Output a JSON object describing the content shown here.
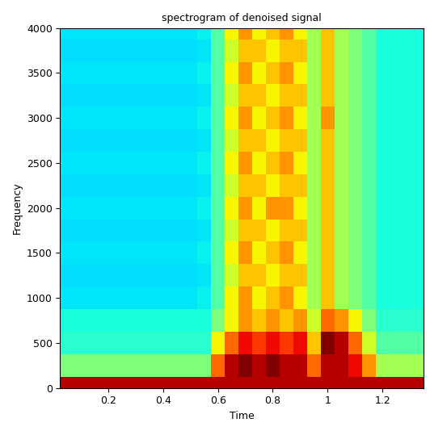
{
  "chart_data": {
    "type": "heatmap",
    "title": "spectrogram of denoised signal",
    "x_label": "Time",
    "y_label": "Frequency",
    "xlim": [
      0.025,
      1.35
    ],
    "xticks": [
      0.2,
      0.4,
      0.6,
      0.8,
      1,
      1.2
    ],
    "ylim": [
      0,
      4000
    ],
    "yticks": [
      0,
      500,
      1000,
      1500,
      2000,
      2500,
      3000,
      3500,
      4000
    ],
    "grid": false,
    "x": [
      0.05,
      0.1,
      0.15,
      0.2,
      0.25,
      0.3,
      0.35,
      0.4,
      0.45,
      0.5,
      0.55,
      0.6,
      0.65,
      0.7,
      0.75,
      0.8,
      0.85,
      0.9,
      0.95,
      1.0,
      1.05,
      1.1,
      1.15,
      1.2,
      1.25,
      1.3,
      1.35
    ],
    "y": [
      0,
      250,
      500,
      750,
      1000,
      1250,
      1500,
      1750,
      2000,
      2250,
      2500,
      2750,
      3000,
      3250,
      3500,
      3750,
      4000
    ],
    "color_range": [
      0,
      10
    ],
    "cells": [
      [
        9.5,
        9.5,
        9.5,
        9.5,
        9.5,
        9.5,
        9.5,
        9.5,
        9.5,
        9.5,
        9.5,
        9.5,
        9.5,
        9.5,
        9.5,
        9.5,
        9.5,
        9.5,
        9.5,
        9.5,
        9.5,
        9.5,
        9.5,
        9.5,
        9.5,
        9.5,
        9.5
      ],
      [
        5,
        5,
        5,
        5,
        5,
        5,
        5,
        5,
        5,
        5,
        5,
        8,
        9.5,
        10,
        9.5,
        10,
        9.5,
        9.5,
        8,
        9.5,
        9.5,
        9,
        7.5,
        5.5,
        5.5,
        5.5,
        5.5
      ],
      [
        4,
        4,
        4,
        4,
        4,
        4,
        4,
        4,
        4,
        4,
        4,
        6.5,
        8,
        9,
        8.5,
        9,
        8.5,
        9,
        7,
        10,
        9.5,
        8,
        6,
        4.5,
        4.5,
        4.5,
        4.5
      ],
      [
        3.8,
        3.8,
        3.8,
        3.8,
        3.8,
        3.8,
        3.8,
        3.8,
        3.8,
        3.8,
        3.8,
        5,
        6.5,
        7.5,
        7,
        7.5,
        7,
        7.5,
        6,
        8,
        7.5,
        6.5,
        5,
        4,
        4,
        4,
        4
      ],
      [
        3.5,
        3.5,
        3.5,
        3.5,
        3.5,
        3.5,
        3.5,
        3.5,
        3.5,
        3.5,
        3.6,
        4.5,
        6.5,
        7.5,
        6.5,
        7,
        7.5,
        6.5,
        5.5,
        7,
        5.5,
        5,
        4.5,
        3.8,
        3.8,
        3.8,
        3.8
      ],
      [
        3.4,
        3.4,
        3.4,
        3.4,
        3.4,
        3.4,
        3.4,
        3.4,
        3.4,
        3.4,
        3.5,
        4.5,
        6,
        7,
        7,
        6.5,
        7,
        7,
        5.5,
        7,
        5.5,
        5,
        4.5,
        3.8,
        3.8,
        3.8,
        3.8
      ],
      [
        3.5,
        3.5,
        3.5,
        3.5,
        3.5,
        3.5,
        3.5,
        3.5,
        3.5,
        3.5,
        3.6,
        4.5,
        6.5,
        7.5,
        6.5,
        7,
        7.5,
        6.5,
        5.5,
        7,
        5.5,
        5,
        4.5,
        3.8,
        3.8,
        3.8,
        3.8
      ],
      [
        3.4,
        3.4,
        3.4,
        3.4,
        3.4,
        3.4,
        3.4,
        3.4,
        3.4,
        3.4,
        3.5,
        4.5,
        6,
        7,
        7,
        6.5,
        7,
        7,
        5.5,
        7,
        5.5,
        5,
        4.5,
        3.8,
        3.8,
        3.8,
        3.8
      ],
      [
        3.5,
        3.5,
        3.5,
        3.5,
        3.5,
        3.5,
        3.5,
        3.5,
        3.5,
        3.5,
        3.6,
        4.5,
        6.5,
        7.5,
        6.5,
        7.5,
        7.5,
        6.5,
        5.5,
        7,
        5.5,
        5,
        4.5,
        3.8,
        3.8,
        3.8,
        3.8
      ],
      [
        3.4,
        3.4,
        3.4,
        3.4,
        3.4,
        3.4,
        3.4,
        3.4,
        3.4,
        3.4,
        3.5,
        4.5,
        6,
        7,
        7,
        6.5,
        7,
        7,
        5.5,
        7,
        5.5,
        5,
        4.5,
        3.8,
        3.8,
        3.8,
        3.8
      ],
      [
        3.5,
        3.5,
        3.5,
        3.5,
        3.5,
        3.5,
        3.5,
        3.5,
        3.5,
        3.5,
        3.6,
        4.5,
        6.5,
        7.5,
        6.5,
        7,
        7.5,
        6.5,
        5.5,
        7,
        5.5,
        5,
        4.5,
        3.8,
        3.8,
        3.8,
        3.8
      ],
      [
        3.4,
        3.4,
        3.4,
        3.4,
        3.4,
        3.4,
        3.4,
        3.4,
        3.4,
        3.4,
        3.5,
        4.5,
        6,
        7,
        7,
        6.5,
        7,
        7,
        5.5,
        7,
        5.5,
        5,
        4.5,
        3.8,
        3.8,
        3.8,
        3.8
      ],
      [
        3.5,
        3.5,
        3.5,
        3.5,
        3.5,
        3.5,
        3.5,
        3.5,
        3.5,
        3.5,
        3.6,
        4.5,
        6.5,
        7.5,
        6.5,
        7,
        7.5,
        6.5,
        5.5,
        7.5,
        5.5,
        5,
        4.5,
        3.8,
        3.8,
        3.8,
        3.8
      ],
      [
        3.4,
        3.4,
        3.4,
        3.4,
        3.4,
        3.4,
        3.4,
        3.4,
        3.4,
        3.4,
        3.5,
        4.5,
        6,
        7,
        7,
        6.5,
        7,
        7,
        5.5,
        7,
        5.5,
        5,
        4.5,
        3.8,
        3.8,
        3.8,
        3.8
      ],
      [
        3.5,
        3.5,
        3.5,
        3.5,
        3.5,
        3.5,
        3.5,
        3.5,
        3.5,
        3.5,
        3.6,
        4.5,
        6.5,
        7.5,
        6.5,
        7,
        7.5,
        6.5,
        5.5,
        7,
        5.5,
        5,
        4.5,
        3.8,
        3.8,
        3.8,
        3.8
      ],
      [
        3.4,
        3.4,
        3.4,
        3.4,
        3.4,
        3.4,
        3.4,
        3.4,
        3.4,
        3.4,
        3.5,
        4.5,
        6,
        7,
        7,
        6.5,
        7,
        7,
        5.5,
        7,
        5.5,
        5,
        4.5,
        3.8,
        3.8,
        3.8,
        3.8
      ],
      [
        3.5,
        3.5,
        3.5,
        3.5,
        3.5,
        3.5,
        3.5,
        3.5,
        3.5,
        3.5,
        3.6,
        4.5,
        6.5,
        7.5,
        6.5,
        7,
        7.5,
        6.5,
        5.5,
        7,
        5.5,
        5,
        4.5,
        3.8,
        3.8,
        3.8,
        3.8
      ]
    ]
  }
}
